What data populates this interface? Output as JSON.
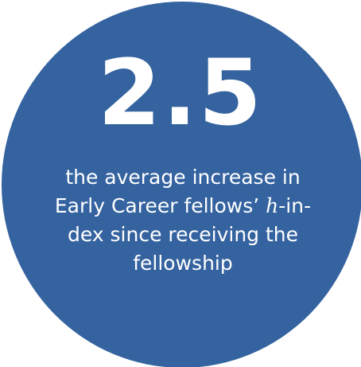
{
  "stat": {
    "value": "2.5"
  },
  "caption": {
    "line1": "the average increase in",
    "line2_part1": "Early Career fellows’ ",
    "line2_italic": "h",
    "line2_part2": "-in-",
    "line3": "dex since receiving the",
    "line4": "fellowship"
  },
  "colors": {
    "circle": "#3563a0",
    "text": "#ffffff",
    "background": "#ffffff"
  }
}
